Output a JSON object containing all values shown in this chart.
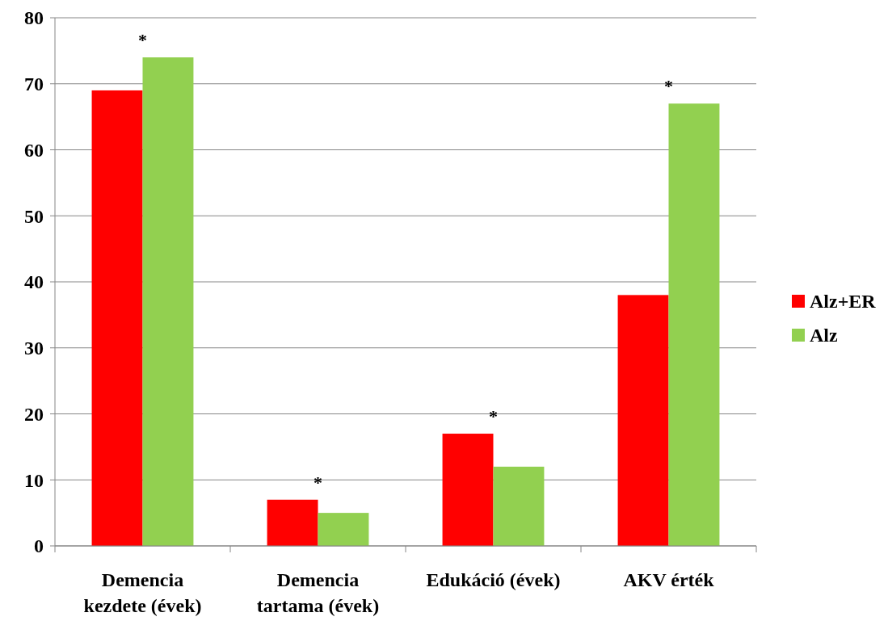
{
  "chart_data": {
    "type": "bar",
    "categories": [
      "Demencia kezdete (évek)",
      "Demencia tartama (évek)",
      "Edukáció (évek)",
      "AKV érték"
    ],
    "series": [
      {
        "name": "Alz+ER",
        "color": "#ff0000",
        "values": [
          69,
          7,
          17,
          38
        ]
      },
      {
        "name": "Alz",
        "color": "#92d050",
        "values": [
          74,
          5,
          12,
          67
        ]
      }
    ],
    "ylim": [
      0,
      80
    ],
    "yticks": [
      0,
      10,
      20,
      30,
      40,
      50,
      60,
      70,
      80
    ],
    "grid": "y",
    "legend": "right",
    "annotations": [
      "*",
      "*",
      "*",
      "*"
    ]
  }
}
